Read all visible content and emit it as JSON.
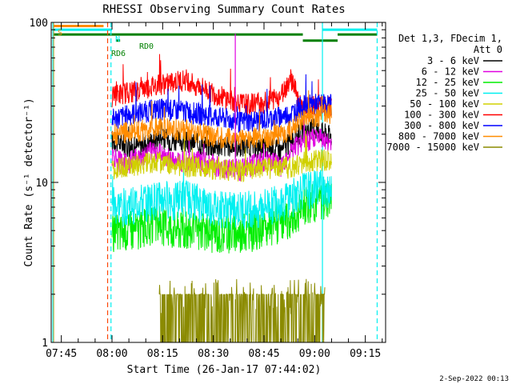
{
  "chart_data": {
    "type": "line",
    "title": "RHESSI Observing Summary Count Rates",
    "xlabel": "Start Time (26-Jan-17 07:44:02)",
    "ylabel": "Count Rate (s⁻¹ detector⁻¹)",
    "y_scale": "log",
    "ylim": [
      1,
      100
    ],
    "xlim_minutes": [
      -2,
      97
    ],
    "x_ticks": [
      {
        "label": "07:45",
        "minute": 1
      },
      {
        "label": "08:00",
        "minute": 16
      },
      {
        "label": "08:15",
        "minute": 31
      },
      {
        "label": "08:30",
        "minute": 46
      },
      {
        "label": "08:45",
        "minute": 61
      },
      {
        "label": "09:00",
        "minute": 76
      },
      {
        "label": "09:15",
        "minute": 91
      }
    ],
    "y_ticks": [
      {
        "label": "100",
        "value": 100
      },
      {
        "label": "10",
        "value": 10
      },
      {
        "label": "1",
        "value": 1
      }
    ],
    "legend_header": [
      "Det 1,3, FDecim 1,",
      "Att 0"
    ],
    "series": [
      {
        "name": "3 - 6 keV",
        "color": "#000000",
        "x_min": [
          16,
          16.1,
          22,
          30,
          38,
          46,
          54,
          62,
          66,
          69,
          72,
          76,
          80,
          84
        ],
        "values": [
          18.5,
          18.5,
          16.5,
          19,
          18,
          17,
          17,
          16.5,
          16,
          18,
          21,
          22,
          20,
          18
        ]
      },
      {
        "name": "6 - 12 keV",
        "color": "#e000e0",
        "x_min": [
          16,
          16.1,
          20,
          28,
          34,
          40,
          46,
          54,
          62,
          66,
          69,
          72,
          76,
          80,
          84
        ],
        "values": [
          14.5,
          14.5,
          13,
          16,
          13.5,
          13.8,
          13,
          12,
          14,
          12.5,
          15.5,
          18,
          19,
          18,
          17.5
        ]
      },
      {
        "name": "12 - 25 keV",
        "color": "#00ee00",
        "x_min": [
          16,
          16.1,
          22,
          30,
          38,
          46,
          54,
          62,
          66,
          69,
          72,
          76,
          80,
          84
        ],
        "values": [
          5,
          5,
          5.2,
          5.6,
          5.2,
          5.0,
          5.0,
          5.2,
          5.8,
          6.0,
          7.0,
          7.8,
          8.2,
          8.0
        ]
      },
      {
        "name": "25 - 50 keV",
        "color": "#00f0f0",
        "x_min": [
          16,
          16.1,
          22,
          30,
          38,
          46,
          54,
          62,
          66,
          69,
          72,
          76,
          80,
          84
        ],
        "values": [
          7.0,
          7.0,
          7.4,
          7.9,
          8.1,
          7.0,
          6.8,
          7.2,
          7.8,
          8.2,
          8.9,
          9.4,
          9.6,
          9.5
        ]
      },
      {
        "name": "50 - 100 keV",
        "color": "#d0d000",
        "x_min": [
          16,
          16.1,
          22,
          30,
          38,
          46,
          54,
          62,
          66,
          69,
          72,
          76,
          80,
          84
        ],
        "values": [
          12,
          12,
          13,
          13.5,
          12.8,
          12.3,
          12.0,
          12.3,
          12.6,
          12.5,
          13.3,
          14,
          13.8,
          13.5
        ]
      },
      {
        "name": "100 - 300 keV",
        "color": "#ff0000",
        "x_min": [
          16,
          16.1,
          22,
          30,
          38,
          46,
          54,
          62,
          66,
          69,
          72,
          76,
          80,
          84
        ],
        "values": [
          35,
          35,
          37,
          41,
          44,
          36,
          31,
          32,
          35,
          45,
          30,
          30,
          30,
          31
        ]
      },
      {
        "name": "300 - 800 keV",
        "color": "#0000ff",
        "x_min": [
          16,
          16.1,
          22,
          30,
          38,
          46,
          54,
          62,
          66,
          69,
          72,
          76,
          80,
          84
        ],
        "values": [
          25,
          25,
          27,
          29,
          28,
          26,
          24,
          25,
          26,
          27,
          30,
          31,
          31,
          31
        ]
      },
      {
        "name": "800 - 7000 keV",
        "color": "#ff8c00",
        "x_min": [
          16,
          16.1,
          22,
          30,
          38,
          46,
          54,
          62,
          66,
          69,
          72,
          76,
          80,
          84
        ],
        "values": [
          20,
          20,
          21,
          22,
          21.5,
          19.5,
          18.5,
          19.5,
          20.5,
          21.5,
          24,
          26,
          27,
          26
        ]
      },
      {
        "name": "7000 - 15000 keV",
        "color": "#8b8b00",
        "x_min": [
          30,
          34,
          38,
          42,
          46,
          62,
          66,
          70,
          72,
          74
        ],
        "values": [
          2,
          2,
          2,
          1.5,
          1.7,
          2,
          2,
          2,
          2.5,
          3
        ]
      }
    ],
    "state_bars": [
      {
        "label": "S",
        "color": "#ff8c00",
        "level": 95
      },
      {
        "label": "N",
        "color": "#00f0f0",
        "level": 90
      },
      {
        "label": "RD6",
        "color": "#008000",
        "level": 77
      },
      {
        "label": "RD0",
        "color": "#008000",
        "level": 84
      }
    ],
    "vlines": [
      {
        "minute": -1.3,
        "color": "#ff8c00",
        "style": "solid"
      },
      {
        "minute": -1.5,
        "color": "#00f0f0",
        "style": "solid"
      },
      {
        "minute": 14.7,
        "color": "#ff4500",
        "style": "dashed"
      },
      {
        "minute": 15.7,
        "color": "#00f0f0",
        "style": "dashed"
      },
      {
        "minute": 78.3,
        "color": "#00f0f0",
        "style": "solid"
      },
      {
        "minute": 94.5,
        "color": "#00f0f0",
        "style": "dashed"
      }
    ],
    "grid": false
  },
  "footer": {
    "timestamp": "2-Sep-2022 00:13"
  }
}
